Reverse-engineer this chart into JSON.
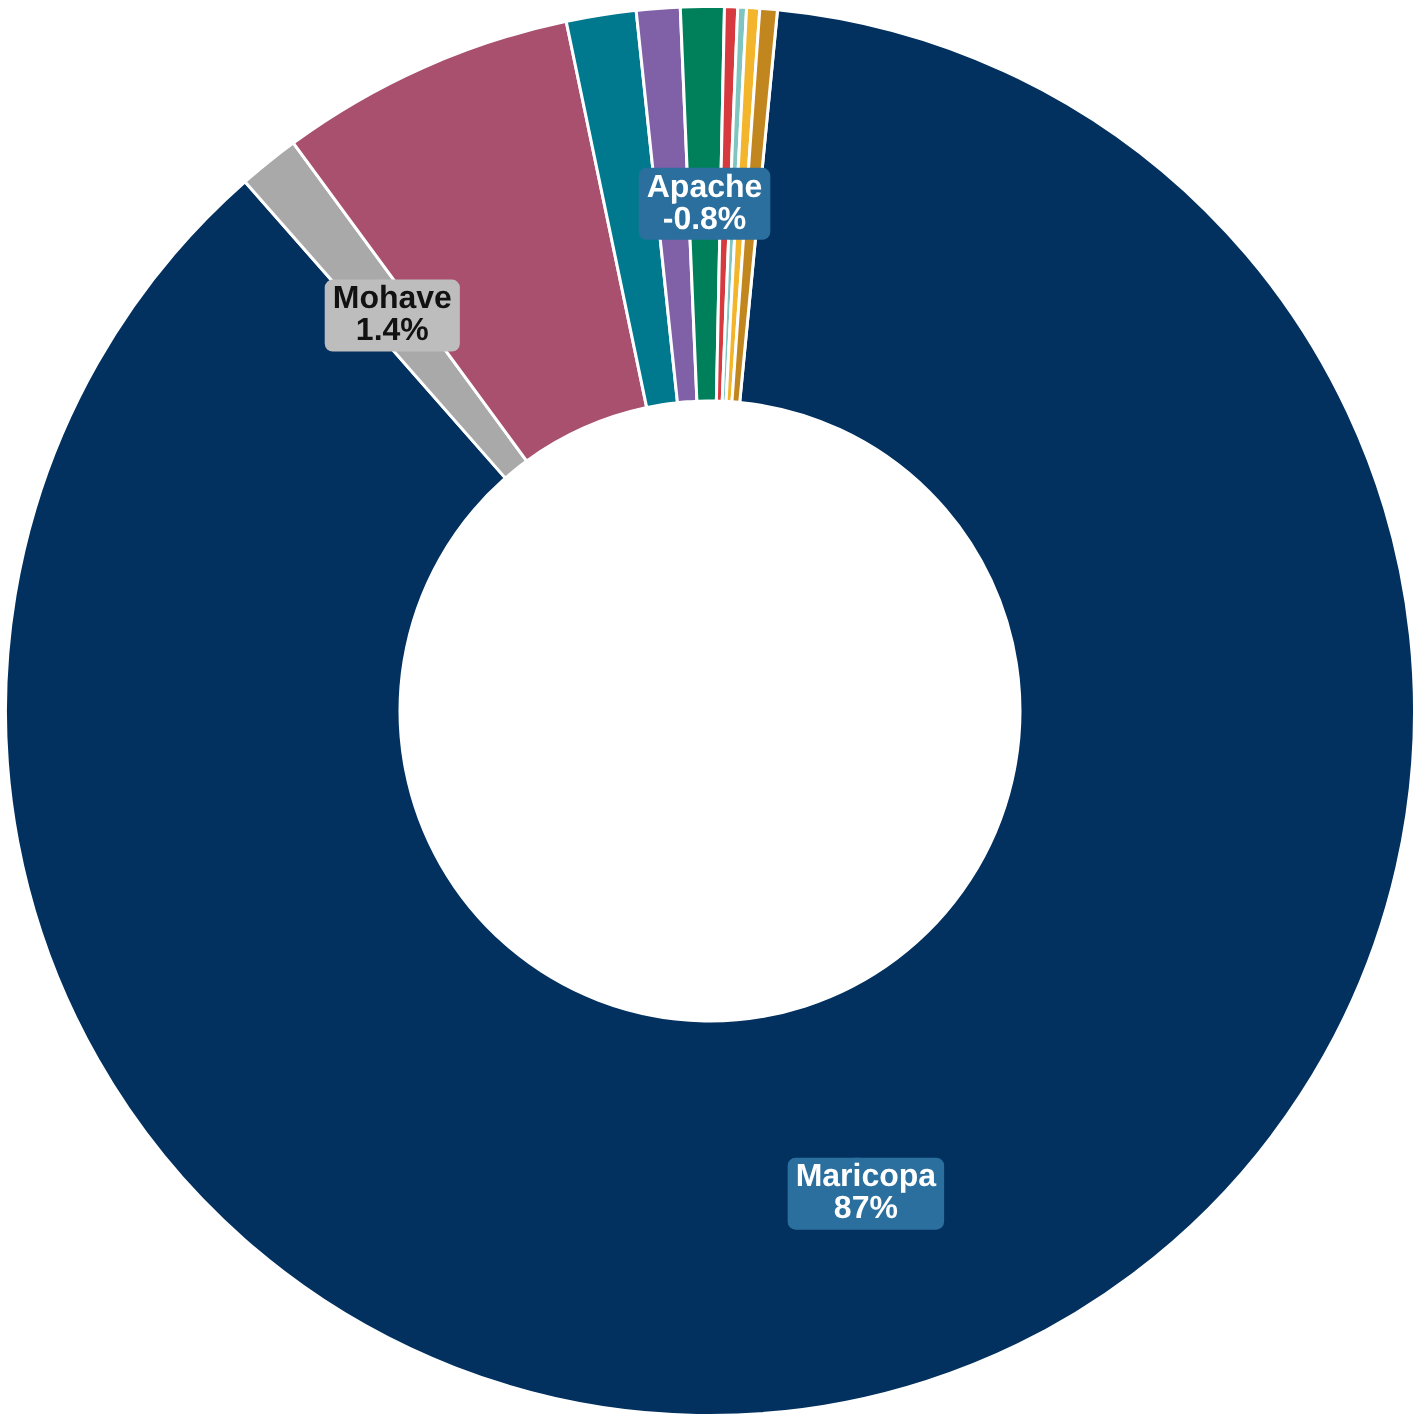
{
  "chart_data": {
    "type": "donut",
    "categories": [
      "Maricopa",
      "Mohave",
      null,
      null,
      null,
      "Apache",
      null,
      null,
      null,
      null
    ],
    "values": [
      87,
      1.4,
      6.8,
      1.6,
      1.0,
      1.0,
      0.3,
      0.2,
      0.3,
      0.4
    ],
    "value_labels": [
      "87%",
      "1.4%",
      null,
      null,
      null,
      null,
      null,
      null,
      null,
      null
    ],
    "annotations": [
      {
        "text": "-0.8%",
        "x": "Apache"
      }
    ],
    "colors": [
      "#02315f",
      "#a9a9a9",
      "#a8506e",
      "#00798f",
      "#8061a8",
      "#00805a",
      "#d63a3f",
      "#7fc5c0",
      "#f2b52c",
      "#c2861f"
    ],
    "legend": false
  }
}
